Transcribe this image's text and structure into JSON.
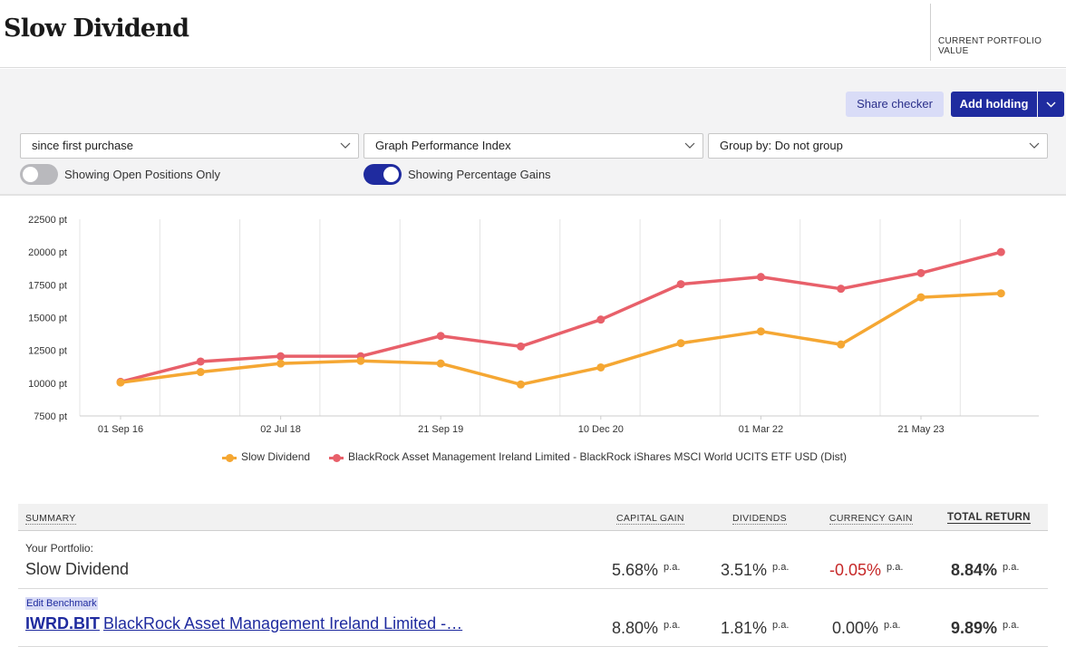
{
  "header": {
    "title": "Slow Dividend",
    "current_portfolio_value_label": "CURRENT PORTFOLIO VALUE"
  },
  "actions": {
    "share_checker": "Share checker",
    "add_holding": "Add holding"
  },
  "filters": {
    "period": "since first purchase",
    "graph_type": "Graph Performance Index",
    "group_by": "Group by: Do not group",
    "toggle_open_positions": {
      "label": "Showing Open Positions Only",
      "on": false
    },
    "toggle_percentage": {
      "label": "Showing Percentage Gains",
      "on": true
    }
  },
  "colors": {
    "accent": "#1f2b9f",
    "portfolio_series": "#f5a733",
    "benchmark_series": "#e8606a",
    "negative": "#c62828"
  },
  "chart_data": {
    "type": "line",
    "y_unit": "pt",
    "ylim": [
      7500,
      22500
    ],
    "y_ticks": [
      "22500 pt",
      "20000 pt",
      "17500 pt",
      "15000 pt",
      "12500 pt",
      "10000 pt",
      "7500 pt"
    ],
    "x_tick_labels": [
      "01 Sep 16",
      "02 Jul 18",
      "21 Sep 19",
      "10 Dec 20",
      "01 Mar 22",
      "21 May 23"
    ],
    "grid": true,
    "legend_position": "bottom",
    "series": [
      {
        "name": "Slow Dividend",
        "color": "#f5a733",
        "values": [
          10050,
          10850,
          11500,
          11700,
          11500,
          9900,
          11200,
          13050,
          13950,
          12950,
          16550,
          16850
        ]
      },
      {
        "name": "BlackRock Asset Management Ireland Limited - BlackRock iShares MSCI World UCITS ETF USD (Dist)",
        "color": "#e8606a",
        "values": [
          10100,
          11650,
          12050,
          12050,
          13600,
          12800,
          14850,
          17550,
          18100,
          17200,
          18400,
          20000
        ]
      }
    ]
  },
  "summary": {
    "headers": {
      "summary": "SUMMARY",
      "capital_gain": "CAPITAL GAIN",
      "dividends": "DIVIDENDS",
      "currency_gain": "CURRENCY GAIN",
      "total_return": "TOTAL RETURN"
    },
    "pa_suffix": "p.a.",
    "portfolio": {
      "caption": "Your Portfolio:",
      "name": "Slow Dividend",
      "capital_gain": "5.68%",
      "dividends": "3.51%",
      "currency_gain": "-0.05%",
      "total_return": "8.84%"
    },
    "benchmark": {
      "edit_label": "Edit Benchmark",
      "ticker": "IWRD.BIT",
      "name": "BlackRock Asset Management Ireland Limited -…",
      "capital_gain": "8.80%",
      "dividends": "1.81%",
      "currency_gain": "0.00%",
      "total_return": "9.89%"
    }
  }
}
